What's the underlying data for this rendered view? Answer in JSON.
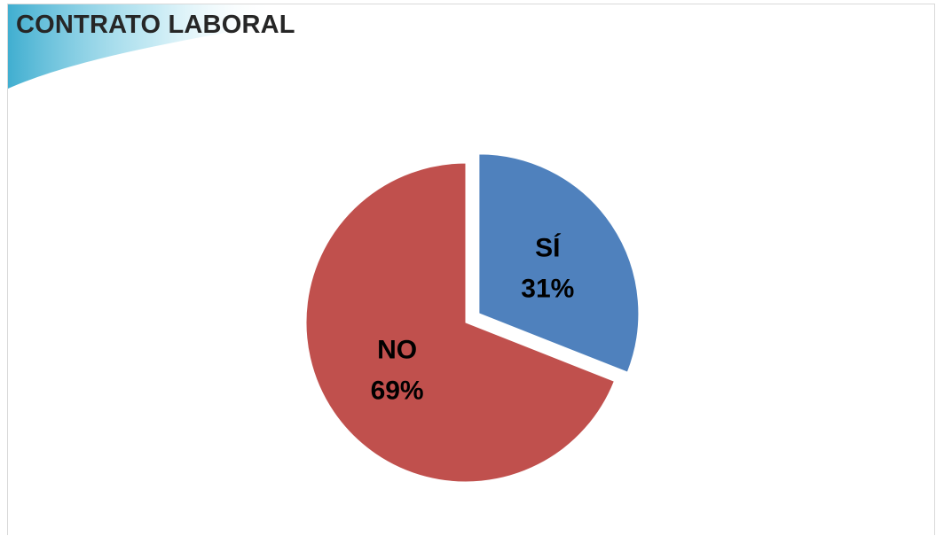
{
  "chart_data": {
    "type": "pie",
    "title": "CONTRATO LABORAL",
    "slices": [
      {
        "label": "SÍ",
        "value": 31,
        "percent_label": "31%",
        "color": "#4f81bd",
        "exploded": true
      },
      {
        "label": "NO",
        "value": 69,
        "percent_label": "69%",
        "color": "#c0504d",
        "exploded": false
      }
    ],
    "legend": "none",
    "start_angle": "12 o'clock, clockwise"
  }
}
